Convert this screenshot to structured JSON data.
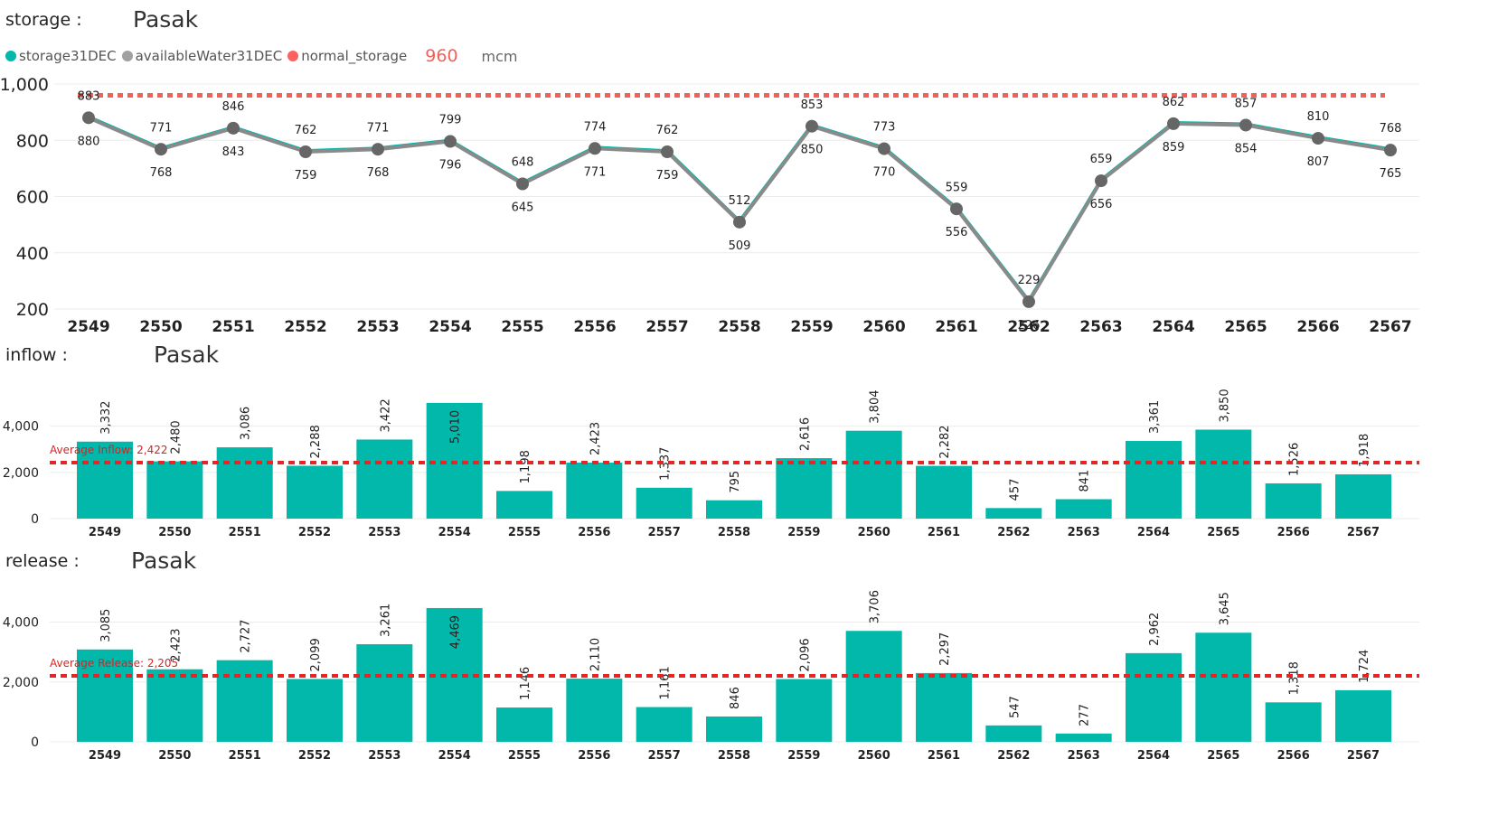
{
  "sections": {
    "storage": {
      "label": "storage :",
      "name": "Pasak"
    },
    "inflow": {
      "label": "inflow :",
      "name": "Pasak"
    },
    "release": {
      "label": "release :",
      "name": "Pasak"
    }
  },
  "legend": {
    "items": [
      {
        "label": "storage31DEC",
        "color": "#01b8aa"
      },
      {
        "label": "availableWater31DEC",
        "color": "#a0a0a0"
      },
      {
        "label": "normal_storage",
        "color": "#fd625e"
      }
    ],
    "value": "960",
    "unit": "mcm"
  },
  "colors": {
    "teal": "#01b8aa",
    "gray": "#7c7c7c",
    "red_dashed": "#ee2222",
    "storage_ref": "#f2605a"
  },
  "chart_data": [
    {
      "type": "line",
      "categories": [
        "2549",
        "2550",
        "2551",
        "2552",
        "2553",
        "2554",
        "2555",
        "2556",
        "2557",
        "2558",
        "2559",
        "2560",
        "2561",
        "2562",
        "2563",
        "2564",
        "2565",
        "2566",
        "2567"
      ],
      "series": [
        {
          "name": "storage31DEC",
          "values": [
            883,
            771,
            846,
            762,
            771,
            799,
            648,
            774,
            762,
            512,
            853,
            773,
            559,
            229,
            659,
            862,
            857,
            810,
            768
          ]
        },
        {
          "name": "availableWater31DEC",
          "values": [
            880,
            768,
            843,
            759,
            768,
            796,
            645,
            771,
            759,
            509,
            850,
            770,
            556,
            226,
            656,
            859,
            854,
            807,
            765
          ]
        }
      ],
      "reference_line": {
        "name": "normal_storage",
        "value": 960
      },
      "ylim": [
        200,
        1000
      ],
      "yticks": [
        "200",
        "400",
        "600",
        "800",
        "1,000"
      ]
    },
    {
      "type": "bar",
      "categories": [
        "2549",
        "2550",
        "2551",
        "2552",
        "2553",
        "2554",
        "2555",
        "2556",
        "2557",
        "2558",
        "2559",
        "2560",
        "2561",
        "2562",
        "2563",
        "2564",
        "2565",
        "2566",
        "2567"
      ],
      "values": [
        3332,
        2480,
        3086,
        2288,
        3422,
        5010,
        1198,
        2423,
        1337,
        795,
        2616,
        3804,
        2282,
        457,
        841,
        3361,
        3850,
        1526,
        1918
      ],
      "labels": [
        "3,332",
        "2,480",
        "3,086",
        "2,288",
        "3,422",
        "5,010",
        "1,198",
        "2,423",
        "1,337",
        "795",
        "2,616",
        "3,804",
        "2,282",
        "457",
        "841",
        "3,361",
        "3,850",
        "1,526",
        "1,918"
      ],
      "average": {
        "label": "Average Inflow: 2,422",
        "value": 2422
      },
      "ylim": [
        0,
        5200
      ],
      "yticks": [
        "0",
        "2,000",
        "4,000"
      ]
    },
    {
      "type": "bar",
      "categories": [
        "2549",
        "2550",
        "2551",
        "2552",
        "2553",
        "2554",
        "2555",
        "2556",
        "2557",
        "2558",
        "2559",
        "2560",
        "2561",
        "2562",
        "2563",
        "2564",
        "2565",
        "2566",
        "2567"
      ],
      "values": [
        3085,
        2423,
        2727,
        2099,
        3261,
        4469,
        1146,
        2110,
        1161,
        846,
        2096,
        3706,
        2297,
        547,
        277,
        2962,
        3645,
        1318,
        1724
      ],
      "labels": [
        "3,085",
        "2,423",
        "2,727",
        "2,099",
        "3,261",
        "4,469",
        "1,146",
        "2,110",
        "1,161",
        "846",
        "2,096",
        "3,706",
        "2,297",
        "547",
        "277",
        "2,962",
        "3,645",
        "1,318",
        "1,724"
      ],
      "average": {
        "label": "Average Release: 2,205",
        "value": 2205
      },
      "ylim": [
        0,
        4800
      ],
      "yticks": [
        "0",
        "2,000",
        "4,000"
      ]
    }
  ]
}
